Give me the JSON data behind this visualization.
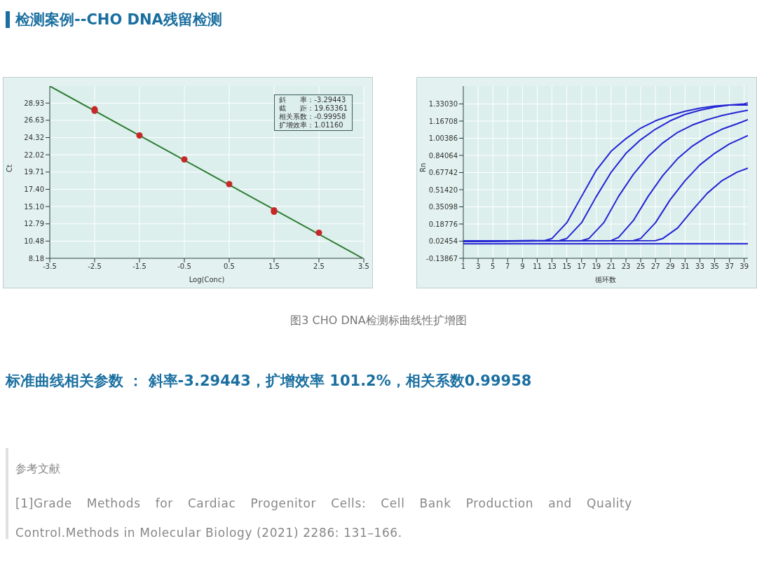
{
  "chart_data": [
    {
      "type": "scatter",
      "title": "检测案例--CHO DNA残留检测",
      "xlabel": "Log(Conc)",
      "ylabel": "Ct",
      "annotations": [
        "斜　　率：-3.29443",
        "截　　距：19.63361",
        "相关系数：-0.99958",
        "扩增效率：1.01160"
      ],
      "series": [
        {
          "marker": "circle",
          "color": "#c62828",
          "x": [
            -2.5,
            -2.5,
            -1.5,
            -0.5,
            0.5,
            1.5,
            1.5,
            2.5
          ],
          "values": [
            28.1,
            27.9,
            24.6,
            21.4,
            18.1,
            14.6,
            14.4,
            11.6
          ]
        },
        {
          "type": "line",
          "marker": "none",
          "color": "#2e7d32",
          "x": [
            -3.5,
            3.47
          ],
          "values": [
            31.2,
            8.2
          ]
        }
      ],
      "xlim": [
        -3.5,
        3.5
      ],
      "xticks": [
        -3.5,
        -2.5,
        -1.5,
        -0.5,
        0.5,
        1.5,
        2.5,
        3.5
      ],
      "ylim": [
        8.18,
        31.2
      ],
      "yticks": [
        {
          "value": 8.18,
          "label": "8.18"
        },
        {
          "value": 10.48,
          "label": "10.48"
        },
        {
          "value": 12.79,
          "label": "12.79"
        },
        {
          "value": 15.1,
          "label": "15.10"
        },
        {
          "value": 17.4,
          "label": "17.40"
        },
        {
          "value": 19.71,
          "label": "19.71"
        },
        {
          "value": 22.02,
          "label": "22.02"
        },
        {
          "value": 24.32,
          "label": "24.32"
        },
        {
          "value": 26.63,
          "label": "26.63"
        },
        {
          "value": 28.93,
          "label": "28.93"
        }
      ],
      "grid": true
    },
    {
      "type": "line",
      "xlabel": "循环数",
      "ylabel": "Rn",
      "annotations": [
        "图3 CHO DNA检测标曲线性扩增图",
        "标准曲线相关参数 ： 斜率-3.29443，扩增效率 101.2%，相关系数0.99958",
        "参考文献",
        "[1]Grade Methods for Cardiac Progenitor Cells: Cell Bank Production and Quality Control.Methods in Molecular Biology (2021) 2286: 131–166."
      ],
      "series": [
        {
          "color": "#2424d4",
          "x": [
            1,
            12,
            13,
            15,
            17,
            19,
            21,
            23,
            25,
            27,
            29,
            31,
            33,
            35,
            37,
            39,
            39.5
          ],
          "values": [
            0.025,
            0.03,
            0.05,
            0.2,
            0.45,
            0.7,
            0.88,
            1.0,
            1.1,
            1.17,
            1.22,
            1.26,
            1.29,
            1.31,
            1.32,
            1.33,
            1.34
          ]
        },
        {
          "color": "#2424d4",
          "x": [
            1,
            14,
            15,
            17,
            19,
            21,
            23,
            25,
            27,
            29,
            31,
            33,
            35,
            37,
            39.5
          ],
          "values": [
            0.025,
            0.03,
            0.05,
            0.2,
            0.45,
            0.68,
            0.86,
            0.99,
            1.09,
            1.17,
            1.23,
            1.27,
            1.3,
            1.32,
            1.32
          ]
        },
        {
          "color": "#2424d4",
          "x": [
            1,
            17,
            18,
            20,
            22,
            24,
            26,
            28,
            30,
            32,
            34,
            36,
            38,
            39.5
          ],
          "values": [
            0.025,
            0.03,
            0.05,
            0.2,
            0.45,
            0.66,
            0.83,
            0.96,
            1.06,
            1.13,
            1.18,
            1.22,
            1.25,
            1.27
          ]
        },
        {
          "color": "#2424d4",
          "x": [
            1,
            21,
            22,
            24,
            26,
            28,
            30,
            32,
            34,
            36,
            38,
            39.5
          ],
          "values": [
            0.025,
            0.03,
            0.06,
            0.22,
            0.45,
            0.65,
            0.81,
            0.93,
            1.02,
            1.09,
            1.14,
            1.18
          ]
        },
        {
          "color": "#2424d4",
          "x": [
            1,
            24,
            25,
            27,
            29,
            31,
            33,
            35,
            37,
            39.5
          ],
          "values": [
            0.025,
            0.03,
            0.05,
            0.2,
            0.42,
            0.6,
            0.75,
            0.86,
            0.95,
            1.03
          ]
        },
        {
          "color": "#2424d4",
          "x": [
            1,
            27,
            28,
            30,
            32,
            34,
            36,
            38,
            39.5
          ],
          "values": [
            0.025,
            0.03,
            0.05,
            0.15,
            0.32,
            0.48,
            0.6,
            0.68,
            0.72
          ]
        },
        {
          "color": "#2424d4",
          "x": [
            1,
            39.5
          ],
          "values": [
            0.0,
            0.0
          ]
        }
      ],
      "xlim": [
        1,
        39.5
      ],
      "xticks": [
        1,
        3,
        5,
        7,
        9,
        11,
        13,
        15,
        17,
        19,
        21,
        23,
        25,
        27,
        29,
        31,
        33,
        35,
        37,
        39
      ],
      "ylim": [
        -0.13867,
        1.5
      ],
      "yticks": [
        -0.13867,
        {
          "value": 0.02454,
          "label": "0.02454"
        },
        {
          "value": 0.18776,
          "label": "0.18776"
        },
        {
          "value": 0.35098,
          "label": "0.35098"
        },
        {
          "value": 0.5142,
          "label": "0.51420"
        },
        {
          "value": 0.67742,
          "label": "0.67742"
        },
        {
          "value": 0.84064,
          "label": "0.84064"
        },
        {
          "value": 1.00386,
          "label": "1.00386"
        },
        {
          "value": 1.16708,
          "label": "1.16708"
        },
        {
          "value": 1.3303,
          "label": "1.33030"
        }
      ],
      "grid": true,
      "marker": "none"
    }
  ]
}
